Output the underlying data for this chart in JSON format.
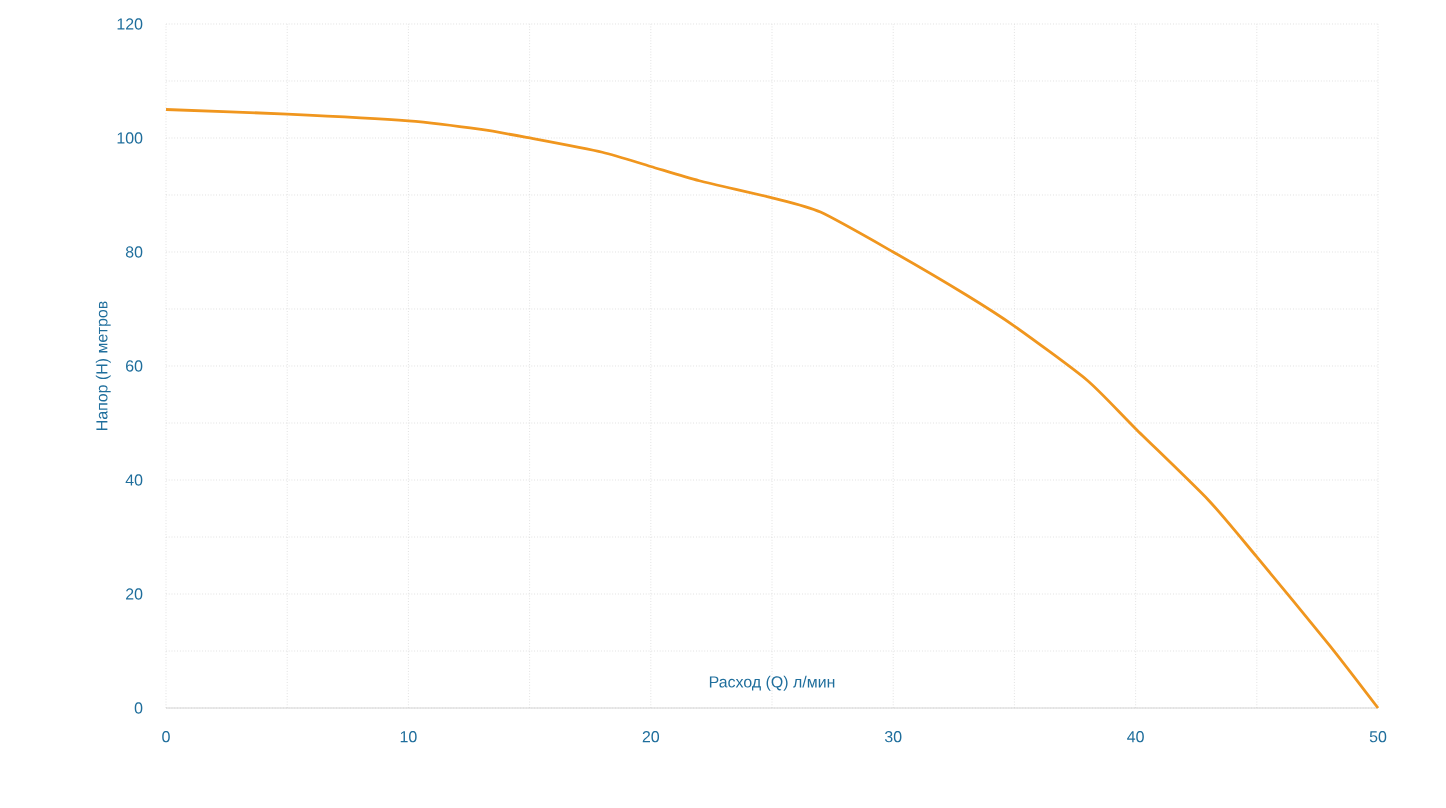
{
  "chart_data": {
    "type": "line",
    "xlabel": "Расход (Q) л/мин",
    "ylabel": "Напор (H) метров",
    "x": [
      0,
      5,
      10,
      13,
      15,
      18,
      20,
      22,
      25,
      27,
      30,
      33,
      35,
      38,
      40,
      43,
      45,
      48,
      50
    ],
    "series": [
      {
        "color": "#f0961e",
        "values": [
          105,
          104.2,
          103,
          101.5,
          100,
          97.5,
          95,
          92.5,
          89.5,
          87,
          80,
          72.5,
          67,
          57.5,
          49,
          36.5,
          26.5,
          11,
          0
        ]
      }
    ],
    "xlim": [
      0,
      50
    ],
    "ylim": [
      0,
      120
    ],
    "xticks": [
      0,
      {
        "value": 5,
        "label": null
      },
      10,
      {
        "value": 15,
        "label": null
      },
      20,
      {
        "value": 25,
        "label": null
      },
      30,
      {
        "value": 35,
        "label": null
      },
      40,
      {
        "value": 45,
        "label": null
      },
      50
    ],
    "yticks": [
      0,
      {
        "value": 10,
        "label": null
      },
      20,
      {
        "value": 30,
        "label": null
      },
      40,
      {
        "value": 50,
        "label": null
      },
      60,
      {
        "value": 70,
        "label": null
      },
      80,
      {
        "value": 90,
        "label": null
      },
      100,
      {
        "value": 110,
        "label": null
      },
      120
    ],
    "grid": true,
    "marker": "none",
    "line_style": "solid"
  }
}
